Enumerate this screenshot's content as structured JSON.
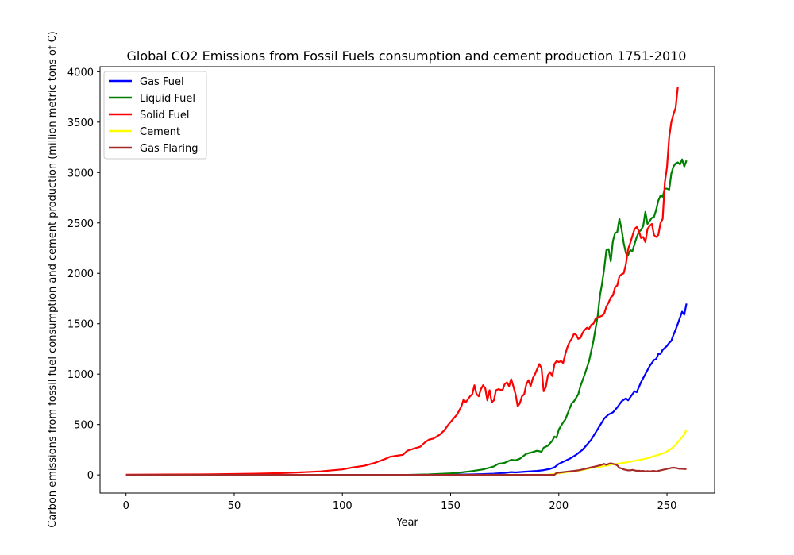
{
  "chart_data": {
    "type": "line",
    "title": "Global CO2 Emissions from Fossil Fuels consumption and cement production 1751-2010",
    "xlabel": "Year",
    "ylabel": "Carbon emissions from fossil fuel consumption and cement production (million metric tons of C)",
    "xlim": [
      -12,
      272
    ],
    "ylim": [
      -180,
      4050
    ],
    "xticks": [
      0,
      50,
      100,
      150,
      200,
      250
    ],
    "yticks": [
      0,
      500,
      1000,
      1500,
      2000,
      2500,
      3000,
      3500,
      4000
    ],
    "grid": false,
    "legend_position": "top-left",
    "series": [
      {
        "name": "Gas Fuel",
        "color": "#0000ff",
        "points": [
          [
            0,
            0
          ],
          [
            133,
            0
          ],
          [
            150,
            2
          ],
          [
            160,
            5
          ],
          [
            165,
            8
          ],
          [
            170,
            12
          ],
          [
            175,
            20
          ],
          [
            178,
            28
          ],
          [
            180,
            25
          ],
          [
            185,
            33
          ],
          [
            190,
            40
          ],
          [
            193,
            48
          ],
          [
            196,
            60
          ],
          [
            198,
            75
          ],
          [
            200,
            110
          ],
          [
            202,
            130
          ],
          [
            205,
            160
          ],
          [
            208,
            200
          ],
          [
            211,
            250
          ],
          [
            213,
            300
          ],
          [
            215,
            350
          ],
          [
            217,
            420
          ],
          [
            219,
            490
          ],
          [
            221,
            560
          ],
          [
            223,
            600
          ],
          [
            225,
            620
          ],
          [
            227,
            670
          ],
          [
            229,
            730
          ],
          [
            231,
            760
          ],
          [
            232,
            740
          ],
          [
            234,
            800
          ],
          [
            235,
            830
          ],
          [
            236,
            820
          ],
          [
            238,
            920
          ],
          [
            240,
            1000
          ],
          [
            242,
            1080
          ],
          [
            244,
            1140
          ],
          [
            245,
            1150
          ],
          [
            246,
            1200
          ],
          [
            247,
            1200
          ],
          [
            248,
            1240
          ],
          [
            250,
            1280
          ],
          [
            251,
            1310
          ],
          [
            252,
            1330
          ],
          [
            253,
            1390
          ],
          [
            254,
            1440
          ],
          [
            255,
            1500
          ],
          [
            256,
            1560
          ],
          [
            257,
            1620
          ],
          [
            258,
            1590
          ],
          [
            259,
            1700
          ]
        ]
      },
      {
        "name": "Liquid Fuel",
        "color": "#008000",
        "points": [
          [
            0,
            0
          ],
          [
            130,
            0
          ],
          [
            140,
            5
          ],
          [
            150,
            15
          ],
          [
            155,
            25
          ],
          [
            160,
            38
          ],
          [
            165,
            55
          ],
          [
            168,
            72
          ],
          [
            170,
            85
          ],
          [
            172,
            110
          ],
          [
            175,
            120
          ],
          [
            178,
            150
          ],
          [
            180,
            145
          ],
          [
            182,
            160
          ],
          [
            185,
            210
          ],
          [
            187,
            220
          ],
          [
            190,
            240
          ],
          [
            192,
            230
          ],
          [
            193,
            270
          ],
          [
            195,
            290
          ],
          [
            197,
            340
          ],
          [
            198,
            380
          ],
          [
            199,
            370
          ],
          [
            200,
            450
          ],
          [
            202,
            520
          ],
          [
            203,
            550
          ],
          [
            205,
            660
          ],
          [
            206,
            710
          ],
          [
            207,
            730
          ],
          [
            209,
            800
          ],
          [
            210,
            880
          ],
          [
            212,
            1000
          ],
          [
            214,
            1130
          ],
          [
            216,
            1330
          ],
          [
            218,
            1580
          ],
          [
            219,
            1780
          ],
          [
            220,
            1900
          ],
          [
            221,
            2050
          ],
          [
            222,
            2230
          ],
          [
            223,
            2240
          ],
          [
            224,
            2120
          ],
          [
            225,
            2320
          ],
          [
            226,
            2400
          ],
          [
            227,
            2410
          ],
          [
            228,
            2540
          ],
          [
            229,
            2440
          ],
          [
            230,
            2300
          ],
          [
            231,
            2200
          ],
          [
            232,
            2180
          ],
          [
            233,
            2230
          ],
          [
            234,
            2220
          ],
          [
            236,
            2360
          ],
          [
            237,
            2410
          ],
          [
            238,
            2430
          ],
          [
            239,
            2470
          ],
          [
            240,
            2610
          ],
          [
            241,
            2490
          ],
          [
            242,
            2520
          ],
          [
            243,
            2550
          ],
          [
            244,
            2560
          ],
          [
            245,
            2630
          ],
          [
            246,
            2720
          ],
          [
            247,
            2770
          ],
          [
            248,
            2760
          ],
          [
            249,
            2840
          ],
          [
            250,
            2840
          ],
          [
            251,
            2830
          ],
          [
            252,
            2990
          ],
          [
            253,
            3060
          ],
          [
            254,
            3090
          ],
          [
            255,
            3100
          ],
          [
            256,
            3080
          ],
          [
            257,
            3130
          ],
          [
            258,
            3060
          ],
          [
            259,
            3120
          ]
        ]
      },
      {
        "name": "Solid Fuel",
        "color": "#ff0000",
        "points": [
          [
            0,
            3
          ],
          [
            20,
            4
          ],
          [
            40,
            6
          ],
          [
            60,
            12
          ],
          [
            70,
            17
          ],
          [
            80,
            25
          ],
          [
            90,
            35
          ],
          [
            100,
            55
          ],
          [
            105,
            75
          ],
          [
            110,
            90
          ],
          [
            115,
            120
          ],
          [
            120,
            160
          ],
          [
            122,
            180
          ],
          [
            125,
            190
          ],
          [
            128,
            200
          ],
          [
            130,
            240
          ],
          [
            133,
            260
          ],
          [
            136,
            280
          ],
          [
            138,
            320
          ],
          [
            140,
            350
          ],
          [
            142,
            360
          ],
          [
            145,
            400
          ],
          [
            147,
            440
          ],
          [
            149,
            500
          ],
          [
            151,
            550
          ],
          [
            153,
            600
          ],
          [
            155,
            680
          ],
          [
            156,
            750
          ],
          [
            157,
            720
          ],
          [
            159,
            780
          ],
          [
            160,
            800
          ],
          [
            161,
            890
          ],
          [
            162,
            800
          ],
          [
            163,
            780
          ],
          [
            164,
            850
          ],
          [
            165,
            890
          ],
          [
            166,
            860
          ],
          [
            167,
            740
          ],
          [
            168,
            840
          ],
          [
            169,
            720
          ],
          [
            170,
            740
          ],
          [
            171,
            840
          ],
          [
            172,
            850
          ],
          [
            174,
            840
          ],
          [
            175,
            900
          ],
          [
            176,
            920
          ],
          [
            177,
            880
          ],
          [
            178,
            950
          ],
          [
            179,
            880
          ],
          [
            180,
            800
          ],
          [
            181,
            680
          ],
          [
            182,
            710
          ],
          [
            183,
            780
          ],
          [
            184,
            800
          ],
          [
            185,
            900
          ],
          [
            186,
            940
          ],
          [
            187,
            880
          ],
          [
            188,
            960
          ],
          [
            189,
            1000
          ],
          [
            190,
            1050
          ],
          [
            191,
            1100
          ],
          [
            192,
            1060
          ],
          [
            193,
            830
          ],
          [
            194,
            870
          ],
          [
            195,
            990
          ],
          [
            196,
            1020
          ],
          [
            197,
            980
          ],
          [
            198,
            1100
          ],
          [
            199,
            1130
          ],
          [
            200,
            1120
          ],
          [
            201,
            1130
          ],
          [
            202,
            1110
          ],
          [
            203,
            1200
          ],
          [
            204,
            1270
          ],
          [
            205,
            1320
          ],
          [
            206,
            1350
          ],
          [
            207,
            1400
          ],
          [
            208,
            1390
          ],
          [
            209,
            1350
          ],
          [
            210,
            1360
          ],
          [
            211,
            1410
          ],
          [
            212,
            1440
          ],
          [
            213,
            1460
          ],
          [
            214,
            1450
          ],
          [
            215,
            1490
          ],
          [
            216,
            1500
          ],
          [
            217,
            1550
          ],
          [
            218,
            1560
          ],
          [
            219,
            1570
          ],
          [
            220,
            1580
          ],
          [
            221,
            1600
          ],
          [
            222,
            1670
          ],
          [
            223,
            1710
          ],
          [
            224,
            1760
          ],
          [
            225,
            1780
          ],
          [
            226,
            1860
          ],
          [
            227,
            1880
          ],
          [
            228,
            1970
          ],
          [
            229,
            1990
          ],
          [
            230,
            2000
          ],
          [
            231,
            2090
          ],
          [
            232,
            2240
          ],
          [
            233,
            2300
          ],
          [
            234,
            2370
          ],
          [
            235,
            2440
          ],
          [
            236,
            2460
          ],
          [
            237,
            2420
          ],
          [
            238,
            2350
          ],
          [
            239,
            2360
          ],
          [
            240,
            2310
          ],
          [
            241,
            2440
          ],
          [
            242,
            2470
          ],
          [
            243,
            2490
          ],
          [
            244,
            2380
          ],
          [
            245,
            2360
          ],
          [
            246,
            2380
          ],
          [
            247,
            2500
          ],
          [
            248,
            2540
          ],
          [
            249,
            2900
          ],
          [
            250,
            3050
          ],
          [
            251,
            3350
          ],
          [
            252,
            3500
          ],
          [
            253,
            3580
          ],
          [
            254,
            3640
          ],
          [
            255,
            3850
          ]
        ]
      },
      {
        "name": "Cement",
        "color": "#ffff00",
        "points": [
          [
            0,
            0
          ],
          [
            150,
            0
          ],
          [
            195,
            3
          ],
          [
            200,
            15
          ],
          [
            205,
            30
          ],
          [
            210,
            45
          ],
          [
            215,
            70
          ],
          [
            220,
            85
          ],
          [
            225,
            105
          ],
          [
            230,
            120
          ],
          [
            235,
            140
          ],
          [
            240,
            160
          ],
          [
            243,
            180
          ],
          [
            246,
            200
          ],
          [
            249,
            220
          ],
          [
            252,
            260
          ],
          [
            254,
            300
          ],
          [
            256,
            350
          ],
          [
            258,
            400
          ],
          [
            259,
            450
          ]
        ]
      },
      {
        "name": "Gas Flaring",
        "color": "#a52a2a",
        "points": [
          [
            0,
            0
          ],
          [
            198,
            0
          ],
          [
            199,
            20
          ],
          [
            201,
            25
          ],
          [
            203,
            30
          ],
          [
            205,
            35
          ],
          [
            207,
            40
          ],
          [
            209,
            45
          ],
          [
            211,
            55
          ],
          [
            213,
            65
          ],
          [
            215,
            75
          ],
          [
            217,
            85
          ],
          [
            219,
            95
          ],
          [
            221,
            110
          ],
          [
            222,
            100
          ],
          [
            223,
            110
          ],
          [
            224,
            115
          ],
          [
            225,
            110
          ],
          [
            226,
            105
          ],
          [
            227,
            95
          ],
          [
            228,
            70
          ],
          [
            229,
            65
          ],
          [
            230,
            55
          ],
          [
            231,
            50
          ],
          [
            232,
            45
          ],
          [
            233,
            45
          ],
          [
            234,
            50
          ],
          [
            235,
            45
          ],
          [
            236,
            40
          ],
          [
            237,
            42
          ],
          [
            238,
            38
          ],
          [
            239,
            40
          ],
          [
            240,
            35
          ],
          [
            241,
            38
          ],
          [
            242,
            35
          ],
          [
            243,
            38
          ],
          [
            244,
            40
          ],
          [
            245,
            35
          ],
          [
            246,
            40
          ],
          [
            247,
            45
          ],
          [
            248,
            50
          ],
          [
            249,
            55
          ],
          [
            250,
            60
          ],
          [
            251,
            65
          ],
          [
            252,
            70
          ],
          [
            253,
            72
          ],
          [
            254,
            70
          ],
          [
            255,
            65
          ],
          [
            256,
            60
          ],
          [
            257,
            62
          ],
          [
            258,
            58
          ],
          [
            259,
            60
          ]
        ]
      }
    ]
  }
}
